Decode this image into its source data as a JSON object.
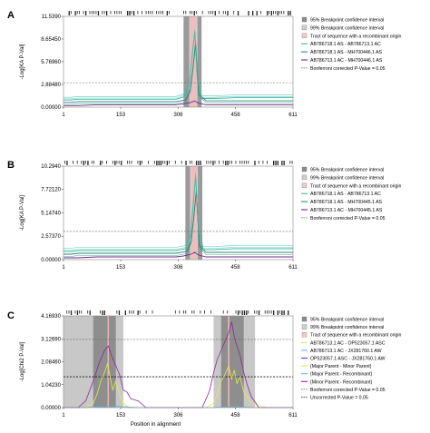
{
  "chart_data": [
    {
      "panel": "A",
      "type": "line",
      "xlabel": "",
      "ylabel": "-Log[KA P-Val]",
      "x_ticks": [
        1,
        153,
        306,
        458,
        611
      ],
      "xlim": [
        1,
        611
      ],
      "y_ticks": [
        "0.00000",
        "2.88480",
        "5.76960",
        "8.65450",
        "11.5390"
      ],
      "ylim": [
        0,
        11.539
      ],
      "threshold": 3.1,
      "ci95": [
        [
          320,
          368
        ]
      ],
      "ci99": [
        [
          335,
          357
        ]
      ],
      "recomb_tract": [
        [
          338,
          354
        ]
      ],
      "legend": [
        {
          "label": "95% Breakpoint confidence interval",
          "kind": "box",
          "color": "#8c8c8c"
        },
        {
          "label": "99% Breakpoint confidence interval",
          "kind": "box",
          "color": "#cfcfcf"
        },
        {
          "label": "Tract of sequence with a recombinant origin",
          "kind": "box",
          "color": "#f6c9c9"
        },
        {
          "label": "AB786718.1 AS - AB786713.1 AC",
          "kind": "line",
          "color": "#3fb8a6"
        },
        {
          "label": "AB786718.1 AS - MH700446.1 AS",
          "kind": "line",
          "color": "#2b8a78"
        },
        {
          "label": "AB786713.1 AC - MH700446.1 AS",
          "kind": "line",
          "color": "#6a2f86"
        },
        {
          "label": "Bonferroni corrected P-Value = 0.05",
          "kind": "dash",
          "color": "#555555"
        }
      ],
      "series": [
        {
          "name": "AB786718.1 AS - AB786713.1 AC",
          "color": "#3fb8a6",
          "x": [
            1,
            20,
            40,
            90,
            153,
            240,
            300,
            320,
            335,
            342,
            350,
            357,
            368,
            400,
            458,
            520,
            611
          ],
          "y": [
            0.9,
            0.9,
            1.0,
            1.0,
            1.0,
            1.0,
            1.0,
            1.3,
            2.6,
            6.0,
            9.5,
            3.2,
            1.1,
            1.1,
            1.2,
            1.2,
            1.2
          ]
        },
        {
          "name": "AB786718.1 AS - MH700446.1 AS",
          "color": "#2b8a78",
          "x": [
            1,
            20,
            40,
            90,
            153,
            240,
            300,
            325,
            338,
            345,
            352,
            360,
            380,
            420,
            458,
            520,
            611
          ],
          "y": [
            0.6,
            0.6,
            0.7,
            0.7,
            0.7,
            0.7,
            0.7,
            0.9,
            2.2,
            5.0,
            8.2,
            1.7,
            0.8,
            0.8,
            0.8,
            0.8,
            0.8
          ]
        },
        {
          "name": "AB786713.1 AC - MH700446.1 AS",
          "color": "#6a2f86",
          "x": [
            1,
            40,
            90,
            153,
            240,
            300,
            320,
            330,
            340,
            350,
            360,
            380,
            420,
            458,
            520,
            611
          ],
          "y": [
            0.2,
            0.2,
            0.3,
            0.3,
            0.3,
            0.3,
            0.4,
            0.5,
            0.6,
            0.8,
            0.5,
            0.3,
            0.3,
            0.3,
            0.3,
            0.3
          ]
        }
      ]
    },
    {
      "panel": "B",
      "type": "line",
      "xlabel": "",
      "ylabel": "-Log[KA P-Val]",
      "x_ticks": [
        1,
        153,
        306,
        458,
        611
      ],
      "xlim": [
        1,
        611
      ],
      "y_ticks": [
        "0.00000",
        "2.57370",
        "5.14740",
        "7.72120",
        "10.2940"
      ],
      "ylim": [
        0,
        10.294
      ],
      "threshold": 3.1,
      "ci95": [
        [
          325,
          370
        ]
      ],
      "ci99": [
        [
          337,
          358
        ]
      ],
      "recomb_tract": [
        [
          340,
          355
        ]
      ],
      "legend": [
        {
          "label": "95% Breakpoint confidence interval",
          "kind": "box",
          "color": "#8c8c8c"
        },
        {
          "label": "99% Breakpoint confidence interval",
          "kind": "box",
          "color": "#cfcfcf"
        },
        {
          "label": "Tract of sequence with a recombinant origin",
          "kind": "box",
          "color": "#f6c9c9"
        },
        {
          "label": "AB786718.1 AS - AB786713.1 AC",
          "kind": "line",
          "color": "#3fb8a6"
        },
        {
          "label": "AB786718.1 AS - MH700445.1 AS",
          "kind": "line",
          "color": "#2b8a78"
        },
        {
          "label": "AB786713.1 AC - MH700445.1 AS",
          "kind": "line",
          "color": "#6a2f86"
        },
        {
          "label": "Bonferroni corrected P-Value = 0.05",
          "kind": "dash",
          "color": "#555555"
        }
      ],
      "series": [
        {
          "name": "AB786718.1 AS - AB786713.1 AC",
          "color": "#3fb8a6",
          "x": [
            1,
            20,
            40,
            90,
            153,
            240,
            300,
            325,
            338,
            345,
            352,
            360,
            372,
            400,
            458,
            520,
            611
          ],
          "y": [
            0.9,
            0.9,
            1.0,
            1.0,
            1.0,
            1.0,
            1.0,
            1.2,
            2.4,
            5.6,
            9.2,
            3.0,
            1.1,
            1.1,
            1.2,
            1.2,
            1.2
          ]
        },
        {
          "name": "AB786718.1 AS - MH700445.1 AS",
          "color": "#2b8a78",
          "x": [
            1,
            20,
            40,
            90,
            153,
            240,
            300,
            328,
            340,
            347,
            354,
            362,
            380,
            420,
            458,
            520,
            611
          ],
          "y": [
            0.6,
            0.6,
            0.7,
            0.7,
            0.7,
            0.7,
            0.7,
            0.9,
            2.0,
            4.6,
            7.6,
            1.6,
            0.8,
            0.8,
            0.8,
            0.8,
            0.8
          ]
        },
        {
          "name": "AB786713.1 AC - MH700445.1 AS",
          "color": "#6a2f86",
          "x": [
            1,
            40,
            90,
            153,
            240,
            300,
            320,
            330,
            340,
            350,
            360,
            380,
            420,
            458,
            520,
            611
          ],
          "y": [
            0.2,
            0.2,
            0.3,
            0.3,
            0.3,
            0.3,
            0.4,
            0.5,
            0.6,
            0.8,
            0.5,
            0.3,
            0.3,
            0.3,
            0.3,
            0.3
          ]
        }
      ]
    },
    {
      "panel": "C",
      "type": "line",
      "xlabel": "Position in alignment",
      "ylabel": "-Log[Chi2 P-Val]",
      "x_ticks": [
        1,
        153,
        306,
        458,
        611
      ],
      "xlim": [
        1,
        611
      ],
      "y_ticks": [
        "0.00000",
        "1.04230",
        "2.08460",
        "3.12690",
        "4.16930"
      ],
      "ylim": [
        0,
        4.1693
      ],
      "threshold": 3.1,
      "threshold2": 1.4,
      "ci95": [
        [
          1,
          160
        ],
        [
          400,
          510
        ]
      ],
      "ci99": [
        [
          80,
          140
        ],
        [
          420,
          480
        ]
      ],
      "recomb_tract": [
        [
          118,
          121
        ],
        [
          438,
          442
        ]
      ],
      "legend": [
        {
          "label": "95% Breakpoint confidence interval",
          "kind": "box",
          "color": "#8c8c8c"
        },
        {
          "label": "99% Breakpoint confidence interval",
          "kind": "box",
          "color": "#cfcfcf"
        },
        {
          "label": "Tract of sequence with a recombinant origin",
          "kind": "box",
          "color": "#f6c9c9"
        },
        {
          "label": "AB786713.1 AC - OP523057.1 ASC",
          "kind": "line",
          "color": "#e8e84a"
        },
        {
          "label": "AB786713.1 AC - JX281760.1 AW",
          "kind": "line",
          "color": "#6ab4d6"
        },
        {
          "label": "OP523057.1 ASC - JX281760.1 AW",
          "kind": "line",
          "color": "#8a2a9a"
        },
        {
          "label": "(Major Parent - Minor Parent)",
          "kind": "line",
          "color": "#e8e84a"
        },
        {
          "label": "(Major Parent - Recombinant)",
          "kind": "line",
          "color": "#6ab4d6"
        },
        {
          "label": "(Minor Parent - Recombinant)",
          "kind": "line",
          "color": "#8a2a9a"
        },
        {
          "label": "Bonferroni corrected P-Value = 0.05",
          "kind": "dash",
          "color": "#555555"
        },
        {
          "label": "Uncorrected P-Value = 0.05",
          "kind": "dash",
          "color": "#111111"
        }
      ],
      "series": [
        {
          "name": "AB786713.1 AC - OP523057.1 ASC",
          "color": "#e8e84a",
          "x": [
            1,
            60,
            80,
            90,
            100,
            110,
            118,
            125,
            132,
            140,
            150,
            160,
            175,
            200,
            300,
            380,
            400,
            410,
            420,
            430,
            440,
            448,
            455,
            462,
            470,
            480,
            500,
            540,
            611
          ],
          "y": [
            0,
            0,
            0.2,
            0.6,
            1.2,
            1.6,
            2.0,
            1.4,
            0.8,
            1.2,
            0.6,
            0.2,
            0,
            0,
            0,
            0,
            0.2,
            0.6,
            1.2,
            1.5,
            1.9,
            1.3,
            1.7,
            1.1,
            1.4,
            0.7,
            0.2,
            0,
            0
          ]
        },
        {
          "name": "AB786713.1 AC - JX281760.1 AW",
          "color": "#6ab4d6",
          "x": [
            1,
            60,
            100,
            153,
            200,
            300,
            400,
            458,
            500,
            611
          ],
          "y": [
            0,
            0,
            0.05,
            0.05,
            0,
            0,
            0,
            0.05,
            0,
            0
          ]
        },
        {
          "name": "OP523057.1 ASC - JX281760.1 AW",
          "color": "#8a2a9a",
          "x": [
            1,
            40,
            60,
            80,
            95,
            110,
            120,
            130,
            140,
            150,
            160,
            170,
            180,
            200,
            220,
            300,
            370,
            390,
            400,
            410,
            420,
            430,
            440,
            448,
            455,
            462,
            470,
            480,
            490,
            500,
            520,
            611
          ],
          "y": [
            0,
            0,
            0.3,
            1.2,
            2.0,
            2.6,
            2.8,
            2.3,
            1.9,
            1.5,
            0.8,
            0.7,
            0.4,
            0.3,
            0,
            0,
            0,
            0.8,
            1.6,
            2.2,
            2.6,
            3.0,
            3.4,
            3.9,
            3.2,
            2.8,
            2.4,
            1.6,
            1.0,
            0.5,
            0,
            0
          ]
        }
      ]
    }
  ]
}
